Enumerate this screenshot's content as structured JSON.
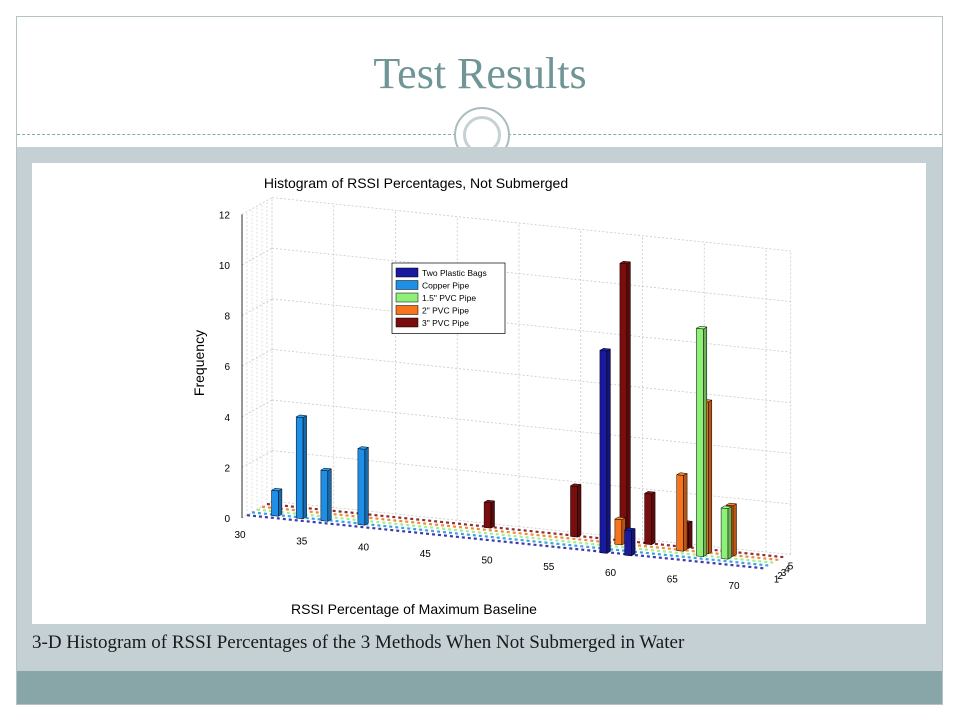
{
  "slide": {
    "title": "Test Results",
    "caption": "3-D Histogram of RSSI Percentages of the 3 Methods When Not Submerged in Water"
  },
  "chart_data": {
    "type": "bar",
    "subtype": "3d-histogram",
    "title": "Histogram of RSSI Percentages, Not Submerged",
    "xlabel": "RSSI Percentage of Maximum Baseline",
    "ylabel": "Frequency",
    "x_ticks": [
      "30",
      "35",
      "40",
      "45",
      "50",
      "55",
      "60",
      "65",
      "70"
    ],
    "y_ticks": [
      "0",
      "2",
      "4",
      "6",
      "8",
      "10",
      "12"
    ],
    "depth_ticks": [
      "1",
      "2",
      "3",
      "4",
      "5"
    ],
    "xlim": [
      30,
      72
    ],
    "zlim": [
      0,
      12
    ],
    "grid": true,
    "legend_position": "top-center",
    "series": [
      {
        "name": "Two Plastic Bags",
        "color": "#1a1aa0",
        "depth": 1,
        "points": [
          {
            "x": 59,
            "y": 8
          },
          {
            "x": 61,
            "y": 1
          }
        ]
      },
      {
        "name": "Copper Pipe",
        "color": "#1e8fe6",
        "depth": 2,
        "points": [
          {
            "x": 32,
            "y": 1
          },
          {
            "x": 34,
            "y": 4
          },
          {
            "x": 36,
            "y": 2
          },
          {
            "x": 39,
            "y": 3
          }
        ]
      },
      {
        "name": "1.5\" PVC Pipe",
        "color": "#8ef078",
        "depth": 3,
        "points": [
          {
            "x": 66,
            "y": 9
          },
          {
            "x": 68,
            "y": 2
          }
        ]
      },
      {
        "name": "2\" PVC Pipe",
        "color": "#f5741c",
        "depth": 4,
        "points": [
          {
            "x": 59,
            "y": 1
          },
          {
            "x": 64,
            "y": 3
          },
          {
            "x": 66,
            "y": 6
          },
          {
            "x": 68,
            "y": 2
          }
        ]
      },
      {
        "name": "3\" PVC Pipe",
        "color": "#7a0e0e",
        "depth": 5,
        "points": [
          {
            "x": 48,
            "y": 1
          },
          {
            "x": 55,
            "y": 2
          },
          {
            "x": 59,
            "y": 11
          },
          {
            "x": 61,
            "y": 2
          },
          {
            "x": 64,
            "y": 1
          }
        ]
      }
    ]
  }
}
